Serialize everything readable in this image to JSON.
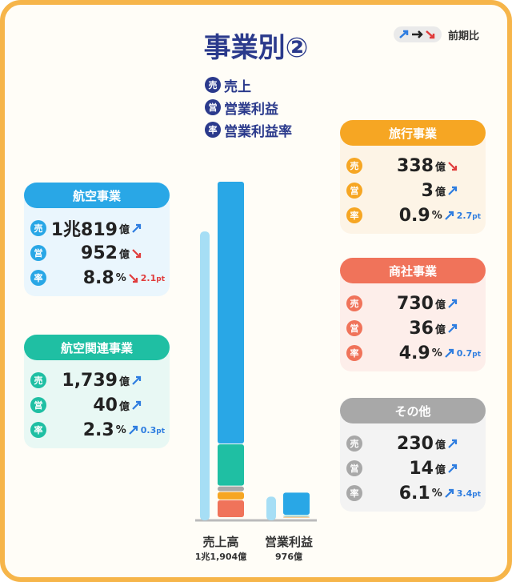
{
  "header": {
    "title": "事業別②",
    "legend": "前期比"
  },
  "key": [
    {
      "icon": "売",
      "label": "売上"
    },
    {
      "icon": "営",
      "label": "営業利益"
    },
    {
      "icon": "率",
      "label": "営業利益率"
    }
  ],
  "units": {
    "money": "億",
    "rate": "%",
    "change": "pt"
  },
  "segments": [
    {
      "name": "航空事業",
      "color": "#29a7e6",
      "tint": "#eaf6fd",
      "sales": {
        "value": 10819,
        "label": "1兆819"
      },
      "sales_dir": "up",
      "profit": 952,
      "profit_dir": "down",
      "rate": 8.8,
      "rate_change": 2.1,
      "rate_dir": "down"
    },
    {
      "name": "航空関連事業",
      "color": "#1fbfa3",
      "tint": "#e8f8f4",
      "sales": {
        "value": 1739,
        "label": "1,739"
      },
      "sales_dir": "up",
      "profit": 40,
      "profit_dir": "up",
      "rate": 2.3,
      "rate_change": 0.3,
      "rate_dir": "up"
    },
    {
      "name": "旅行事業",
      "color": "#f6a623",
      "tint": "#fdf4e6",
      "sales": 338,
      "sales_dir": "down",
      "profit": 3,
      "profit_dir": "up",
      "rate": 0.9,
      "rate_change": 2.7,
      "rate_dir": "up"
    },
    {
      "name": "商社事業",
      "color": "#f0735a",
      "tint": "#fdeeea",
      "sales": 730,
      "sales_dir": "up",
      "profit": 36,
      "profit_dir": "up",
      "rate": 4.9,
      "rate_change": 0.7,
      "rate_dir": "up"
    },
    {
      "name": "その他",
      "color": "#a8a8a8",
      "tint": "#f3f3f3",
      "sales": 230,
      "sales_dir": "up",
      "profit": 14,
      "profit_dir": "up",
      "rate": 6.1,
      "rate_change": 3.4,
      "rate_dir": "up"
    }
  ],
  "totals": {
    "sales_label": "売上高",
    "sales": {
      "value": 11904,
      "label": "1兆1,904"
    },
    "profit_label": "営業利益",
    "profit": 976
  }
}
